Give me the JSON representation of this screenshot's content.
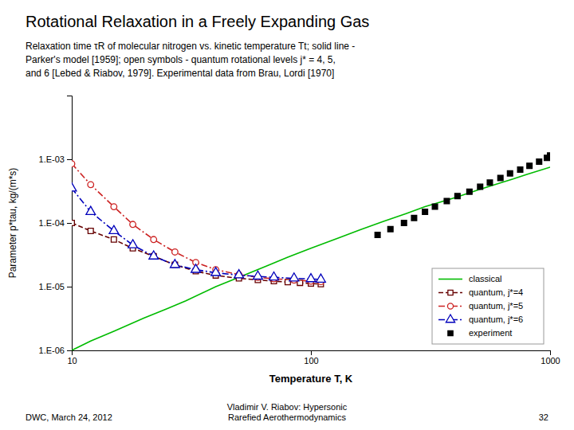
{
  "chart_data": {
    "type": "line",
    "title": "Rotational Relaxation in a Freely Expanding Gas",
    "subtitle": [
      "Relaxation time τR of molecular nitrogen vs. kinetic temperature Tt; solid line -",
      "Parker's model [1959]; open symbols - quantum rotational levels j* = 4, 5,",
      "and 6 [Lebed & Riabov, 1979]. Experimental data from Brau, Lordi [1970]"
    ],
    "x_label": "Temperature T, K",
    "y_label": "Parameter p*tau, kg/(m*s)",
    "annotations": [
      "DWC, March 24, 2012",
      "Vladimir V. Riabov: Hypersonic\nRarefied Aerothermodynamics",
      "32"
    ],
    "log": true,
    "grid": false,
    "legend": "lower right",
    "xlim": [
      10,
      1000
    ],
    "ylim": [
      1e-06,
      0.01
    ],
    "xticks": [
      10,
      100,
      1000
    ],
    "yticks": [
      {
        "value": 1e-06,
        "label": "1.E-06"
      },
      {
        "value": 1e-05,
        "label": "1.E-05"
      },
      {
        "value": 0.0001,
        "label": "1.E-04"
      },
      {
        "value": 0.001,
        "label": "1.E-03"
      }
    ],
    "series": [
      {
        "name": "classical",
        "color": "#00BB00",
        "line_style": "solid",
        "x": [
          10,
          12,
          15,
          20,
          25,
          30,
          40,
          50,
          65,
          80,
          100,
          130,
          160,
          200,
          250,
          300,
          400,
          500,
          600,
          700,
          800,
          1000
        ],
        "values": [
          1e-06,
          1.4e-06,
          2e-06,
          3.2e-06,
          4.5e-06,
          6e-06,
          1e-05,
          1.4e-05,
          2.1e-05,
          2.9e-05,
          4e-05,
          5.8e-05,
          7.8e-05,
          0.000105,
          0.00014,
          0.00018,
          0.00025,
          0.00033,
          0.00041,
          0.00049,
          0.00058,
          0.00075
        ]
      },
      {
        "name": "quantum, j*=4",
        "color": "#660000",
        "line_style": "dashed",
        "marker": "square",
        "x": [
          10,
          12,
          15,
          18,
          22,
          27,
          33,
          40,
          50,
          60,
          70,
          80,
          90,
          100,
          110
        ],
        "values": [
          0.0001,
          7.5e-05,
          5.5e-05,
          4e-05,
          3e-05,
          2.2e-05,
          1.75e-05,
          1.5e-05,
          1.35e-05,
          1.28e-05,
          1.22e-05,
          1.18e-05,
          1.15e-05,
          1.12e-05,
          1.1e-05
        ]
      },
      {
        "name": "quantum, j*=5",
        "color": "#CC2222",
        "line_style": "dashdot",
        "marker": "circle",
        "x": [
          10,
          12,
          15,
          18,
          22,
          27,
          33,
          40,
          50,
          60,
          70,
          85,
          100,
          110
        ],
        "values": [
          0.00085,
          0.0004,
          0.00018,
          9.5e-05,
          5.5e-05,
          3.5e-05,
          2.4e-05,
          1.85e-05,
          1.55e-05,
          1.4e-05,
          1.33e-05,
          1.27e-05,
          1.22e-05,
          1.2e-05
        ]
      },
      {
        "name": "quantum, j*=6",
        "color": "#0000BB",
        "line_style": "dashdot",
        "marker": "triangle",
        "x": [
          10,
          12,
          15,
          18,
          22,
          27,
          33,
          40,
          50,
          60,
          70,
          85,
          100,
          110
        ],
        "values": [
          0.00035,
          0.00015,
          7.5e-05,
          4.5e-05,
          3e-05,
          2.2e-05,
          1.85e-05,
          1.65e-05,
          1.52e-05,
          1.45e-05,
          1.4e-05,
          1.35e-05,
          1.32e-05,
          1.3e-05
        ]
      },
      {
        "name": "experiment",
        "type": "scatter",
        "color": "#000000",
        "marker": "square",
        "x": [
          190,
          215,
          245,
          270,
          300,
          330,
          370,
          410,
          460,
          510,
          560,
          620,
          680,
          750,
          820,
          900,
          970,
          1000
        ],
        "values": [
          6.5e-05,
          8e-05,
          0.0001,
          0.00012,
          0.00015,
          0.00018,
          0.00022,
          0.000265,
          0.00031,
          0.00037,
          0.00043,
          0.00051,
          0.0006,
          0.00069,
          0.00079,
          0.00092,
          0.00105,
          0.00115
        ]
      }
    ]
  }
}
